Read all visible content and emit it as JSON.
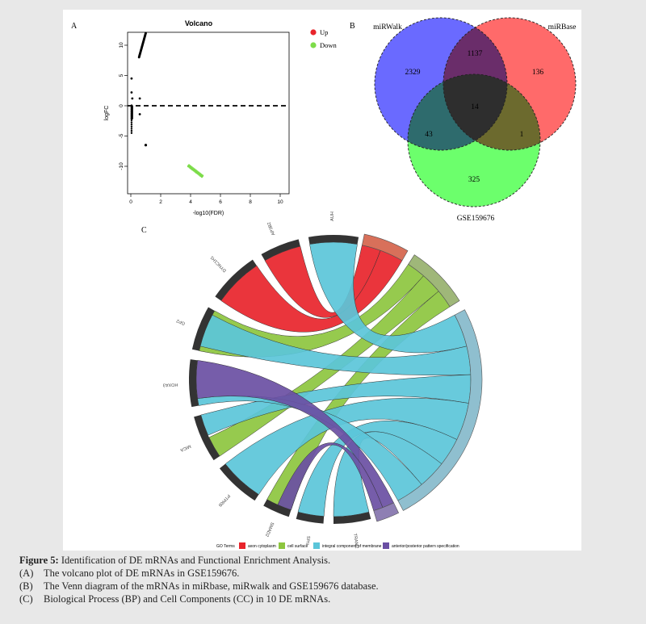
{
  "panels": {
    "a_label": "A",
    "b_label": "B",
    "c_label": "C"
  },
  "volcano": {
    "title": "Volcano",
    "xlabel": "-log10(FDR)",
    "ylabel": "logFC",
    "xticks": [
      "0",
      "2",
      "4",
      "6",
      "8",
      "10"
    ],
    "yticks": [
      "10",
      "5",
      "0",
      "-5",
      "-10"
    ],
    "legend": [
      {
        "label": "Up",
        "color": "#e8242b"
      },
      {
        "label": "Down",
        "color": "#7ddc4a"
      }
    ]
  },
  "venn": {
    "set_labels": {
      "mirwalk": "miRWalk",
      "mirbase": "miRBase",
      "gse": "GSE159676"
    },
    "regions": {
      "walk_only": "2329",
      "walk_base": "1137",
      "base_only": "136",
      "all_three": "14",
      "walk_gse": "43",
      "base_gse": "1",
      "gse_only": "325"
    },
    "colors": {
      "mirwalk": "#4a4af5",
      "mirbase": "#f55a5a",
      "gse": "#4cf04c"
    }
  },
  "chord": {
    "genes": [
      "AUH",
      "AP3B2",
      "DYNC1H1",
      "GP2",
      "HOXA3",
      "MICA",
      "PTPRB",
      "SMAD2",
      "SPN",
      "TRAM2"
    ],
    "legend_title": "GO Terms",
    "terms": [
      {
        "label": "axon cytoplasm",
        "color": "#e8242b"
      },
      {
        "label": "cell surface",
        "color": "#8dc63f"
      },
      {
        "label": "integral component of membrane",
        "color": "#5bc5d9"
      },
      {
        "label": "anterior/posterior pattern specification",
        "color": "#6a4fa3"
      }
    ]
  },
  "caption": {
    "title_bold": "Figure 5:",
    "title_text": " Identification of DE mRNAs and Functional Enrichment Analysis.",
    "items": [
      {
        "tag": "(A)",
        "text": "The volcano plot of DE mRNAs in GSE159676."
      },
      {
        "tag": "(B)",
        "text": "The Venn diagram of the mRNAs in miRbase, miRwalk and GSE159676 database."
      },
      {
        "tag": "(C)",
        "text": "Biological Process (BP) and Cell Components (CC) in 10 DE mRNAs."
      }
    ]
  }
}
